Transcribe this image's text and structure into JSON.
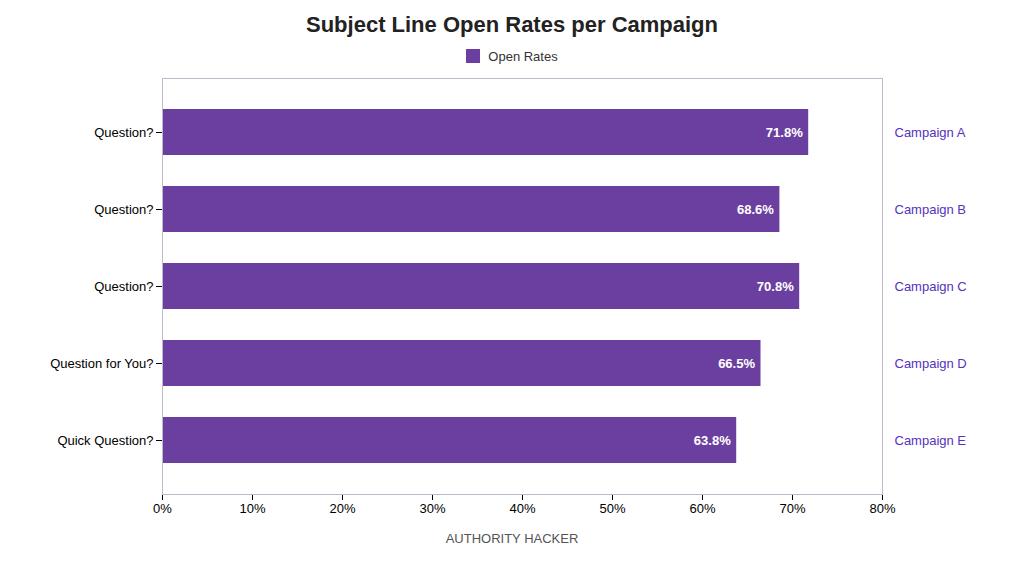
{
  "chart_data": {
    "type": "bar",
    "title": "Subject Line Open Rates per Campaign",
    "orientation": "horizontal",
    "categories": [
      "Question?",
      "Question?",
      "Question?",
      "Question for You?",
      "Quick Question?"
    ],
    "series": [
      {
        "name": "Open Rates",
        "color": "#6B3FA0",
        "values": [
          71.8,
          68.6,
          70.8,
          66.5,
          63.8
        ],
        "value_labels": [
          "71.8%",
          "68.6%",
          "70.8%",
          "66.5%",
          "63.8%"
        ]
      }
    ],
    "annotations": [
      "Campaign A",
      "Campaign B",
      "Campaign C",
      "Campaign D",
      "Campaign E"
    ],
    "caption": "AUTHORITY HACKER",
    "xlim": [
      0,
      80
    ],
    "xticks": [
      {
        "value": 0,
        "label": "0%"
      },
      {
        "value": 10,
        "label": "10%"
      },
      {
        "value": 20,
        "label": "20%"
      },
      {
        "value": 30,
        "label": "30%"
      },
      {
        "value": 40,
        "label": "40%"
      },
      {
        "value": 50,
        "label": "50%"
      },
      {
        "value": 60,
        "label": "60%"
      },
      {
        "value": 70,
        "label": "70%"
      },
      {
        "value": 80,
        "label": "80%"
      }
    ],
    "grid": false,
    "legend": "top",
    "data_labels": true
  }
}
